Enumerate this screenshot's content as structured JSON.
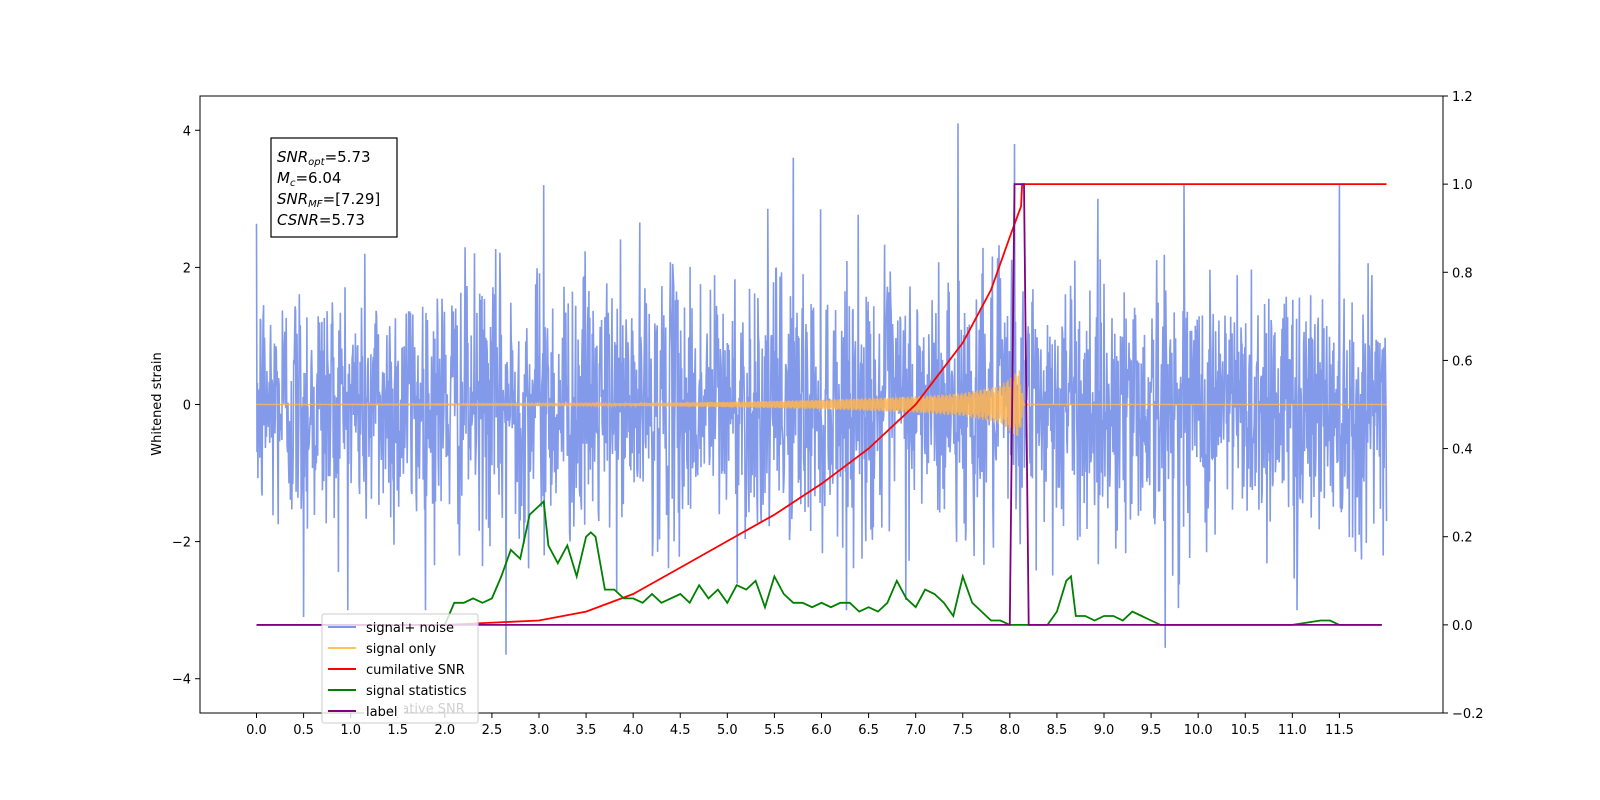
{
  "chart_data": {
    "type": "line",
    "title": "",
    "xlabel": "",
    "ylabel": "Whitened strain",
    "y2label": "",
    "xlim": [
      -0.6,
      12.6
    ],
    "ylim": [
      -4.5,
      4.5
    ],
    "y2lim": [
      -0.2,
      1.2
    ],
    "x_ticks": [
      "0.0",
      "0.5",
      "1.0",
      "1.5",
      "2.0",
      "2.5",
      "3.0",
      "3.5",
      "4.0",
      "4.5",
      "5.0",
      "5.5",
      "6.0",
      "6.5",
      "7.0",
      "7.5",
      "8.0",
      "8.5",
      "9.0",
      "9.5",
      "10.0",
      "10.5",
      "11.0",
      "11.5"
    ],
    "y_ticks": [
      -4,
      -2,
      0,
      2,
      4
    ],
    "y2_ticks": [
      "-0.2",
      "0.0",
      "0.2",
      "0.4",
      "0.6",
      "0.8",
      "1.0",
      "1.2"
    ],
    "grid": false,
    "legend_position": "lower-left",
    "annotation": {
      "lines": [
        {
          "main": "SNR",
          "sub": "opt",
          "value": "=5.73"
        },
        {
          "main": "M",
          "sub": "c",
          "value": "=6.04"
        },
        {
          "main": "SNR",
          "sub": "MF",
          "value": "=[7.29]"
        },
        {
          "main": "CSNR",
          "sub": "",
          "value": "=5.73"
        }
      ]
    },
    "legend": [
      {
        "label": "signal+ noise",
        "color": "#7b95e8"
      },
      {
        "label": "signal only",
        "color": "#ffc35a"
      },
      {
        "label": "cumilative SNR",
        "color": "#ff0000"
      },
      {
        "label": "signal statistics",
        "color": "#008000"
      },
      {
        "label": "label",
        "color": "#800080"
      }
    ],
    "legend_overlap_text": "cumilative SNR",
    "series": [
      {
        "name": "signal+ noise",
        "axis": "left",
        "color": "#7b95e8",
        "style": "dense random noise, std ~0.9, x from 0 to 12.0",
        "peaks_up": [
          [
            3.05,
            3.2
          ],
          [
            5.7,
            3.6
          ],
          [
            7.45,
            4.1
          ],
          [
            8.05,
            3.8
          ],
          [
            9.85,
            3.2
          ],
          [
            11.5,
            3.2
          ]
        ],
        "peaks_down": [
          [
            0.5,
            -3.1
          ],
          [
            2.65,
            -3.65
          ],
          [
            9.65,
            -3.55
          ],
          [
            11.05,
            -3.0
          ]
        ]
      },
      {
        "name": "signal only",
        "axis": "left",
        "color": "#ffb450",
        "style": "chirp growing in amplitude until merger at ~8.1",
        "x": [
          0,
          3.5,
          5.0,
          6.0,
          7.0,
          7.5,
          7.9,
          8.1,
          8.15,
          12.0
        ],
        "envelope": [
          0.0,
          0.01,
          0.04,
          0.07,
          0.12,
          0.17,
          0.28,
          0.5,
          0.0,
          0.0
        ]
      },
      {
        "name": "cumilative SNR",
        "axis": "right",
        "color": "#ff0000",
        "x": [
          0,
          2.0,
          3.0,
          3.5,
          4.0,
          4.5,
          5.0,
          5.5,
          6.0,
          6.5,
          7.0,
          7.5,
          7.8,
          8.0,
          8.12,
          8.13,
          12.0
        ],
        "values": [
          0.0,
          0.0,
          0.01,
          0.03,
          0.07,
          0.13,
          0.19,
          0.25,
          0.32,
          0.4,
          0.5,
          0.64,
          0.76,
          0.88,
          0.95,
          1.0,
          1.0
        ]
      },
      {
        "name": "signal statistics",
        "axis": "right",
        "color": "#008000",
        "x": [
          2.0,
          2.1,
          2.2,
          2.3,
          2.4,
          2.5,
          2.6,
          2.7,
          2.8,
          2.9,
          3.0,
          3.05,
          3.1,
          3.2,
          3.3,
          3.4,
          3.5,
          3.55,
          3.6,
          3.7,
          3.8,
          3.9,
          4.0,
          4.1,
          4.2,
          4.3,
          4.4,
          4.5,
          4.6,
          4.7,
          4.8,
          4.9,
          5.0,
          5.1,
          5.2,
          5.3,
          5.4,
          5.5,
          5.6,
          5.7,
          5.8,
          5.9,
          6.0,
          6.1,
          6.2,
          6.3,
          6.4,
          6.5,
          6.6,
          6.7,
          6.8,
          6.9,
          7.0,
          7.1,
          7.2,
          7.3,
          7.4,
          7.5,
          7.6,
          7.7,
          7.8,
          7.9,
          8.0,
          8.1,
          8.2,
          8.3,
          8.4,
          8.5,
          8.6,
          8.65,
          8.7,
          8.8,
          8.9,
          9.0,
          9.1,
          9.2,
          9.3,
          9.4,
          9.5,
          9.6,
          9.7,
          9.8,
          9.9,
          10.0,
          10.5,
          11.0,
          11.3,
          11.4,
          11.5,
          11.95
        ],
        "values": [
          0.0,
          0.05,
          0.05,
          0.06,
          0.05,
          0.06,
          0.11,
          0.17,
          0.15,
          0.25,
          0.27,
          0.28,
          0.18,
          0.14,
          0.18,
          0.11,
          0.2,
          0.21,
          0.2,
          0.08,
          0.08,
          0.06,
          0.06,
          0.05,
          0.07,
          0.05,
          0.06,
          0.07,
          0.05,
          0.09,
          0.06,
          0.08,
          0.05,
          0.09,
          0.08,
          0.1,
          0.04,
          0.11,
          0.07,
          0.05,
          0.05,
          0.04,
          0.05,
          0.04,
          0.05,
          0.05,
          0.03,
          0.04,
          0.03,
          0.05,
          0.1,
          0.06,
          0.04,
          0.08,
          0.07,
          0.05,
          0.02,
          0.11,
          0.05,
          0.03,
          0.01,
          0.01,
          0.0,
          0.0,
          0.0,
          0.0,
          0.0,
          0.03,
          0.1,
          0.11,
          0.02,
          0.02,
          0.01,
          0.02,
          0.02,
          0.01,
          0.03,
          0.02,
          0.01,
          0.0,
          0.0,
          0.0,
          0.0,
          0.0,
          0.0,
          0.0,
          0.01,
          0.01,
          0.0,
          0.0
        ]
      },
      {
        "name": "label",
        "axis": "right",
        "color": "#800080",
        "x": [
          0,
          8.0,
          8.05,
          8.15,
          8.2,
          11.95
        ],
        "values": [
          0.0,
          0.0,
          1.0,
          1.0,
          0.0,
          0.0
        ]
      }
    ]
  }
}
